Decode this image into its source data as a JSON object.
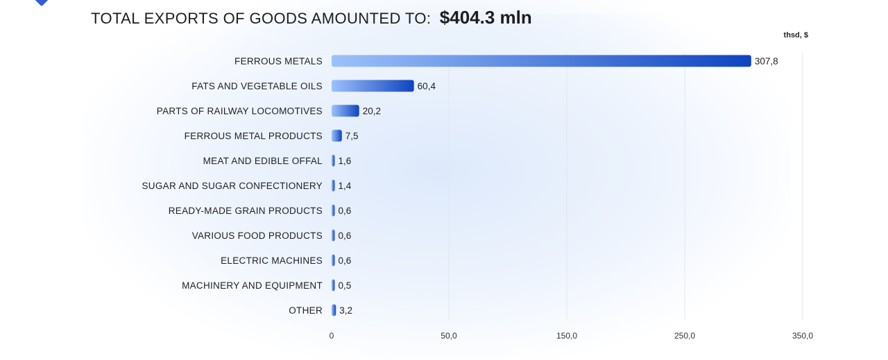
{
  "header": {
    "title": "TOTAL EXPORTS OF GOODS AMOUNTED TO:",
    "total": "$404.3 mln",
    "unit": "thsd, $"
  },
  "colors": {
    "bar_start": "#9cc2fb",
    "bar_end": "#0f44c0",
    "grid": "#e3e7ee",
    "text": "#1f1f1f"
  },
  "chart_data": {
    "type": "bar",
    "orientation": "horizontal",
    "categories": [
      "FERROUS METALS",
      "FATS AND VEGETABLE OILS",
      "PARTS OF RAILWAY LOCOMOTIVES",
      "FERROUS METAL PRODUCTS",
      "MEAT AND EDIBLE OFFAL",
      "SUGAR AND SUGAR CONFECTIONERY",
      "READY-MADE GRAIN PRODUCTS",
      "VARIOUS FOOD PRODUCTS",
      "ELECTRIC MACHINES",
      "MACHINERY AND EQUIPMENT",
      "OTHER"
    ],
    "values": [
      307.8,
      60.4,
      20.2,
      7.5,
      1.6,
      1.4,
      0.6,
      0.6,
      0.6,
      0.5,
      3.2
    ],
    "value_labels": [
      "307,8",
      "60,4",
      "20,2",
      "7,5",
      "1,6",
      "1,4",
      "0,6",
      "0,6",
      "0,6",
      "0,5",
      "3,2"
    ],
    "x_ticks": [
      {
        "label": "0",
        "value": 0
      },
      {
        "label": "50,0",
        "value": 50
      },
      {
        "label": "150,0",
        "value": 150
      },
      {
        "label": "250,0",
        "value": 250
      },
      {
        "label": "350,0",
        "value": 350
      }
    ],
    "grid": true,
    "legend": "none"
  }
}
